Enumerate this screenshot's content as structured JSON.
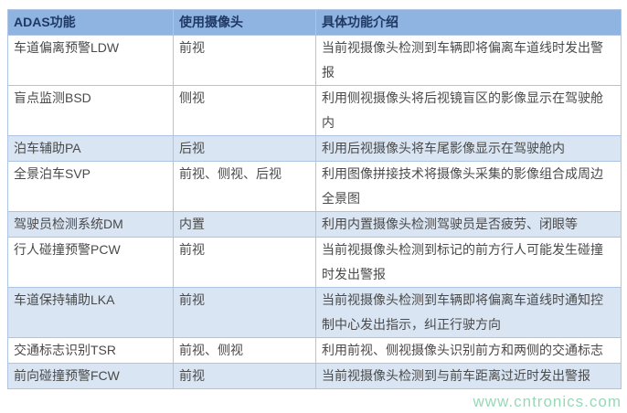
{
  "table": {
    "columns": [
      {
        "label": "ADAS功能"
      },
      {
        "label": "使用摄像头"
      },
      {
        "label": "具体功能介绍"
      }
    ],
    "rows": [
      {
        "function": "车道偏离预警LDW",
        "camera": "前视",
        "description": "当前视摄像头检测到车辆即将偏离车道线时发出警报",
        "shaded": false
      },
      {
        "function": "盲点监测BSD",
        "camera": "侧视",
        "description": "利用侧视摄像头将后视镜盲区的影像显示在驾驶舱内",
        "shaded": false
      },
      {
        "function": "泊车辅助PA",
        "camera": "后视",
        "description": "利用后视摄像头将车尾影像显示在驾驶舱内",
        "shaded": true
      },
      {
        "function": "全景泊车SVP",
        "camera": "前视、侧视、后视",
        "description": "利用图像拼接技术将摄像头采集的影像组合成周边全景图",
        "shaded": false
      },
      {
        "function": "驾驶员检测系统DM",
        "camera": "内置",
        "description": "利用内置摄像头检测驾驶员是否疲劳、闭眼等",
        "shaded": true
      },
      {
        "function": "行人碰撞预警PCW",
        "camera": "前视",
        "description": "当前视摄像头检测到标记的前方行人可能发生碰撞时发出警报",
        "shaded": false
      },
      {
        "function": "车道保持辅助LKA",
        "camera": "前视",
        "description": "当前视摄像头检测到车辆即将偏离车道线时通知控制中心发出指示，纠正行驶方向",
        "shaded": true
      },
      {
        "function": "交通标志识别TSR",
        "camera": "前视、侧视",
        "description": "利用前视、侧视摄像头识别前方和两侧的交通标志",
        "shaded": false
      },
      {
        "function": "前向碰撞预警FCW",
        "camera": "前视",
        "description": "当前视摄像头检测到与前车距离过近时发出警报",
        "shaded": true
      }
    ]
  },
  "watermark": {
    "text": "www.cntronics.com"
  },
  "colors": {
    "header_bg": "#8fb4e2",
    "header_text": "#1f3864",
    "band_bg": "#d9e5f3",
    "border": "#adc5e3",
    "body_text": "#4a4a4a",
    "watermark_green": "#45b87e"
  }
}
